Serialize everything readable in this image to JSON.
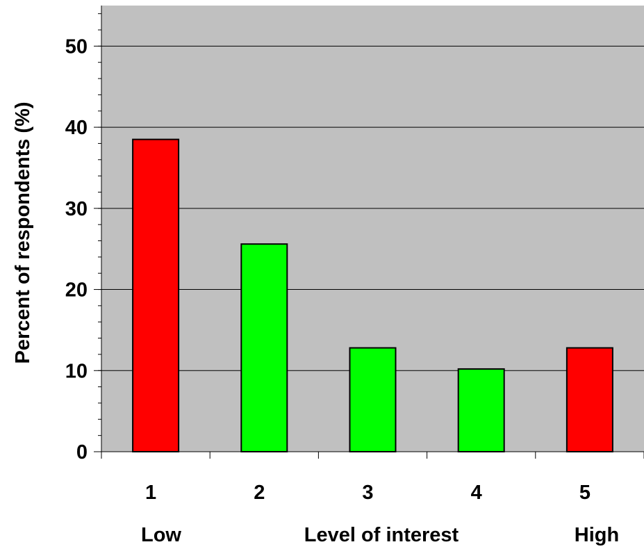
{
  "chart_data": {
    "type": "bar",
    "categories": [
      "1",
      "2",
      "3",
      "4",
      "5"
    ],
    "values": [
      38.5,
      25.6,
      12.8,
      10.2,
      12.8
    ],
    "bar_colors": [
      "#ff0000",
      "#00ff00",
      "#00ff00",
      "#00ff00",
      "#ff0000"
    ],
    "title": "",
    "xlabel": "Level of interest",
    "ylabel": "Percent of respondents (%)",
    "ylim": [
      0,
      55
    ],
    "y_ticks": [
      0,
      10,
      20,
      30,
      40,
      50
    ],
    "y_minor_step": 2,
    "x_end_labels": {
      "low": "Low",
      "high": "High"
    },
    "grid": true,
    "legend": "none",
    "plot_background": "#c0c0c0"
  }
}
